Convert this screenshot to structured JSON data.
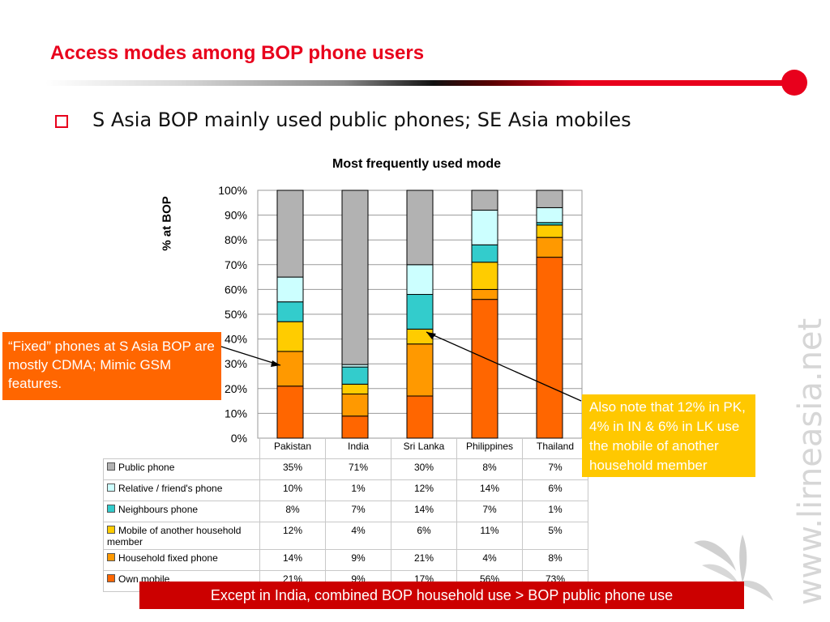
{
  "slide": {
    "title": "Access modes among BOP phone users",
    "bullet": "S Asia BOP mainly used public phones; SE Asia mobiles",
    "callout_left": "“Fixed” phones at S Asia BOP are mostly CDMA; Mimic GSM features.",
    "callout_right": "Also note that 12% in PK, 4% in IN & 6% in LK use the mobile of another household member",
    "footer": "Except in India, combined BOP household use > BOP public phone use",
    "watermark": "www.lirneasia.net"
  },
  "colors": {
    "title": "#e8001c",
    "footer_bg": "#cc0000",
    "callout_left_bg": "#ff6600",
    "callout_right_bg": "#ffc800"
  },
  "chart_data": {
    "type": "bar",
    "stacked": "percent",
    "title": "Most frequently used mode",
    "ylabel": "% at BOP",
    "xlabel": "",
    "ylim": [
      0,
      100
    ],
    "yticks": [
      "0%",
      "10%",
      "20%",
      "30%",
      "40%",
      "50%",
      "60%",
      "70%",
      "80%",
      "90%",
      "100%"
    ],
    "grid": true,
    "legend": "data-table-below",
    "categories": [
      "Pakistan",
      "India",
      "Sri Lanka",
      "Philippines",
      "Thailand"
    ],
    "series": [
      {
        "name": "Public phone",
        "color": "#b2b2b2",
        "values": [
          35,
          71,
          30,
          8,
          7
        ],
        "labels": [
          "35%",
          "71%",
          "30%",
          "8%",
          "7%"
        ]
      },
      {
        "name": "Relative / friend's phone",
        "color": "#ccffff",
        "values": [
          10,
          1,
          12,
          14,
          6
        ],
        "labels": [
          "10%",
          "1%",
          "12%",
          "14%",
          "6%"
        ]
      },
      {
        "name": "Neighbours phone",
        "color": "#33cccc",
        "values": [
          8,
          7,
          14,
          7,
          1
        ],
        "labels": [
          "8%",
          "7%",
          "14%",
          "7%",
          "1%"
        ]
      },
      {
        "name": "Mobile of another household member",
        "color": "#ffcc00",
        "values": [
          12,
          4,
          6,
          11,
          5
        ],
        "labels": [
          "12%",
          "4%",
          "6%",
          "11%",
          "5%"
        ]
      },
      {
        "name": "Household fixed phone",
        "color": "#ff9900",
        "values": [
          14,
          9,
          21,
          4,
          8
        ],
        "labels": [
          "14%",
          "9%",
          "21%",
          "4%",
          "8%"
        ]
      },
      {
        "name": "Own mobile",
        "color": "#ff6600",
        "values": [
          21,
          9,
          17,
          56,
          73
        ],
        "labels": [
          "21%",
          "9%",
          "17%",
          "56%",
          "73%"
        ]
      }
    ]
  }
}
